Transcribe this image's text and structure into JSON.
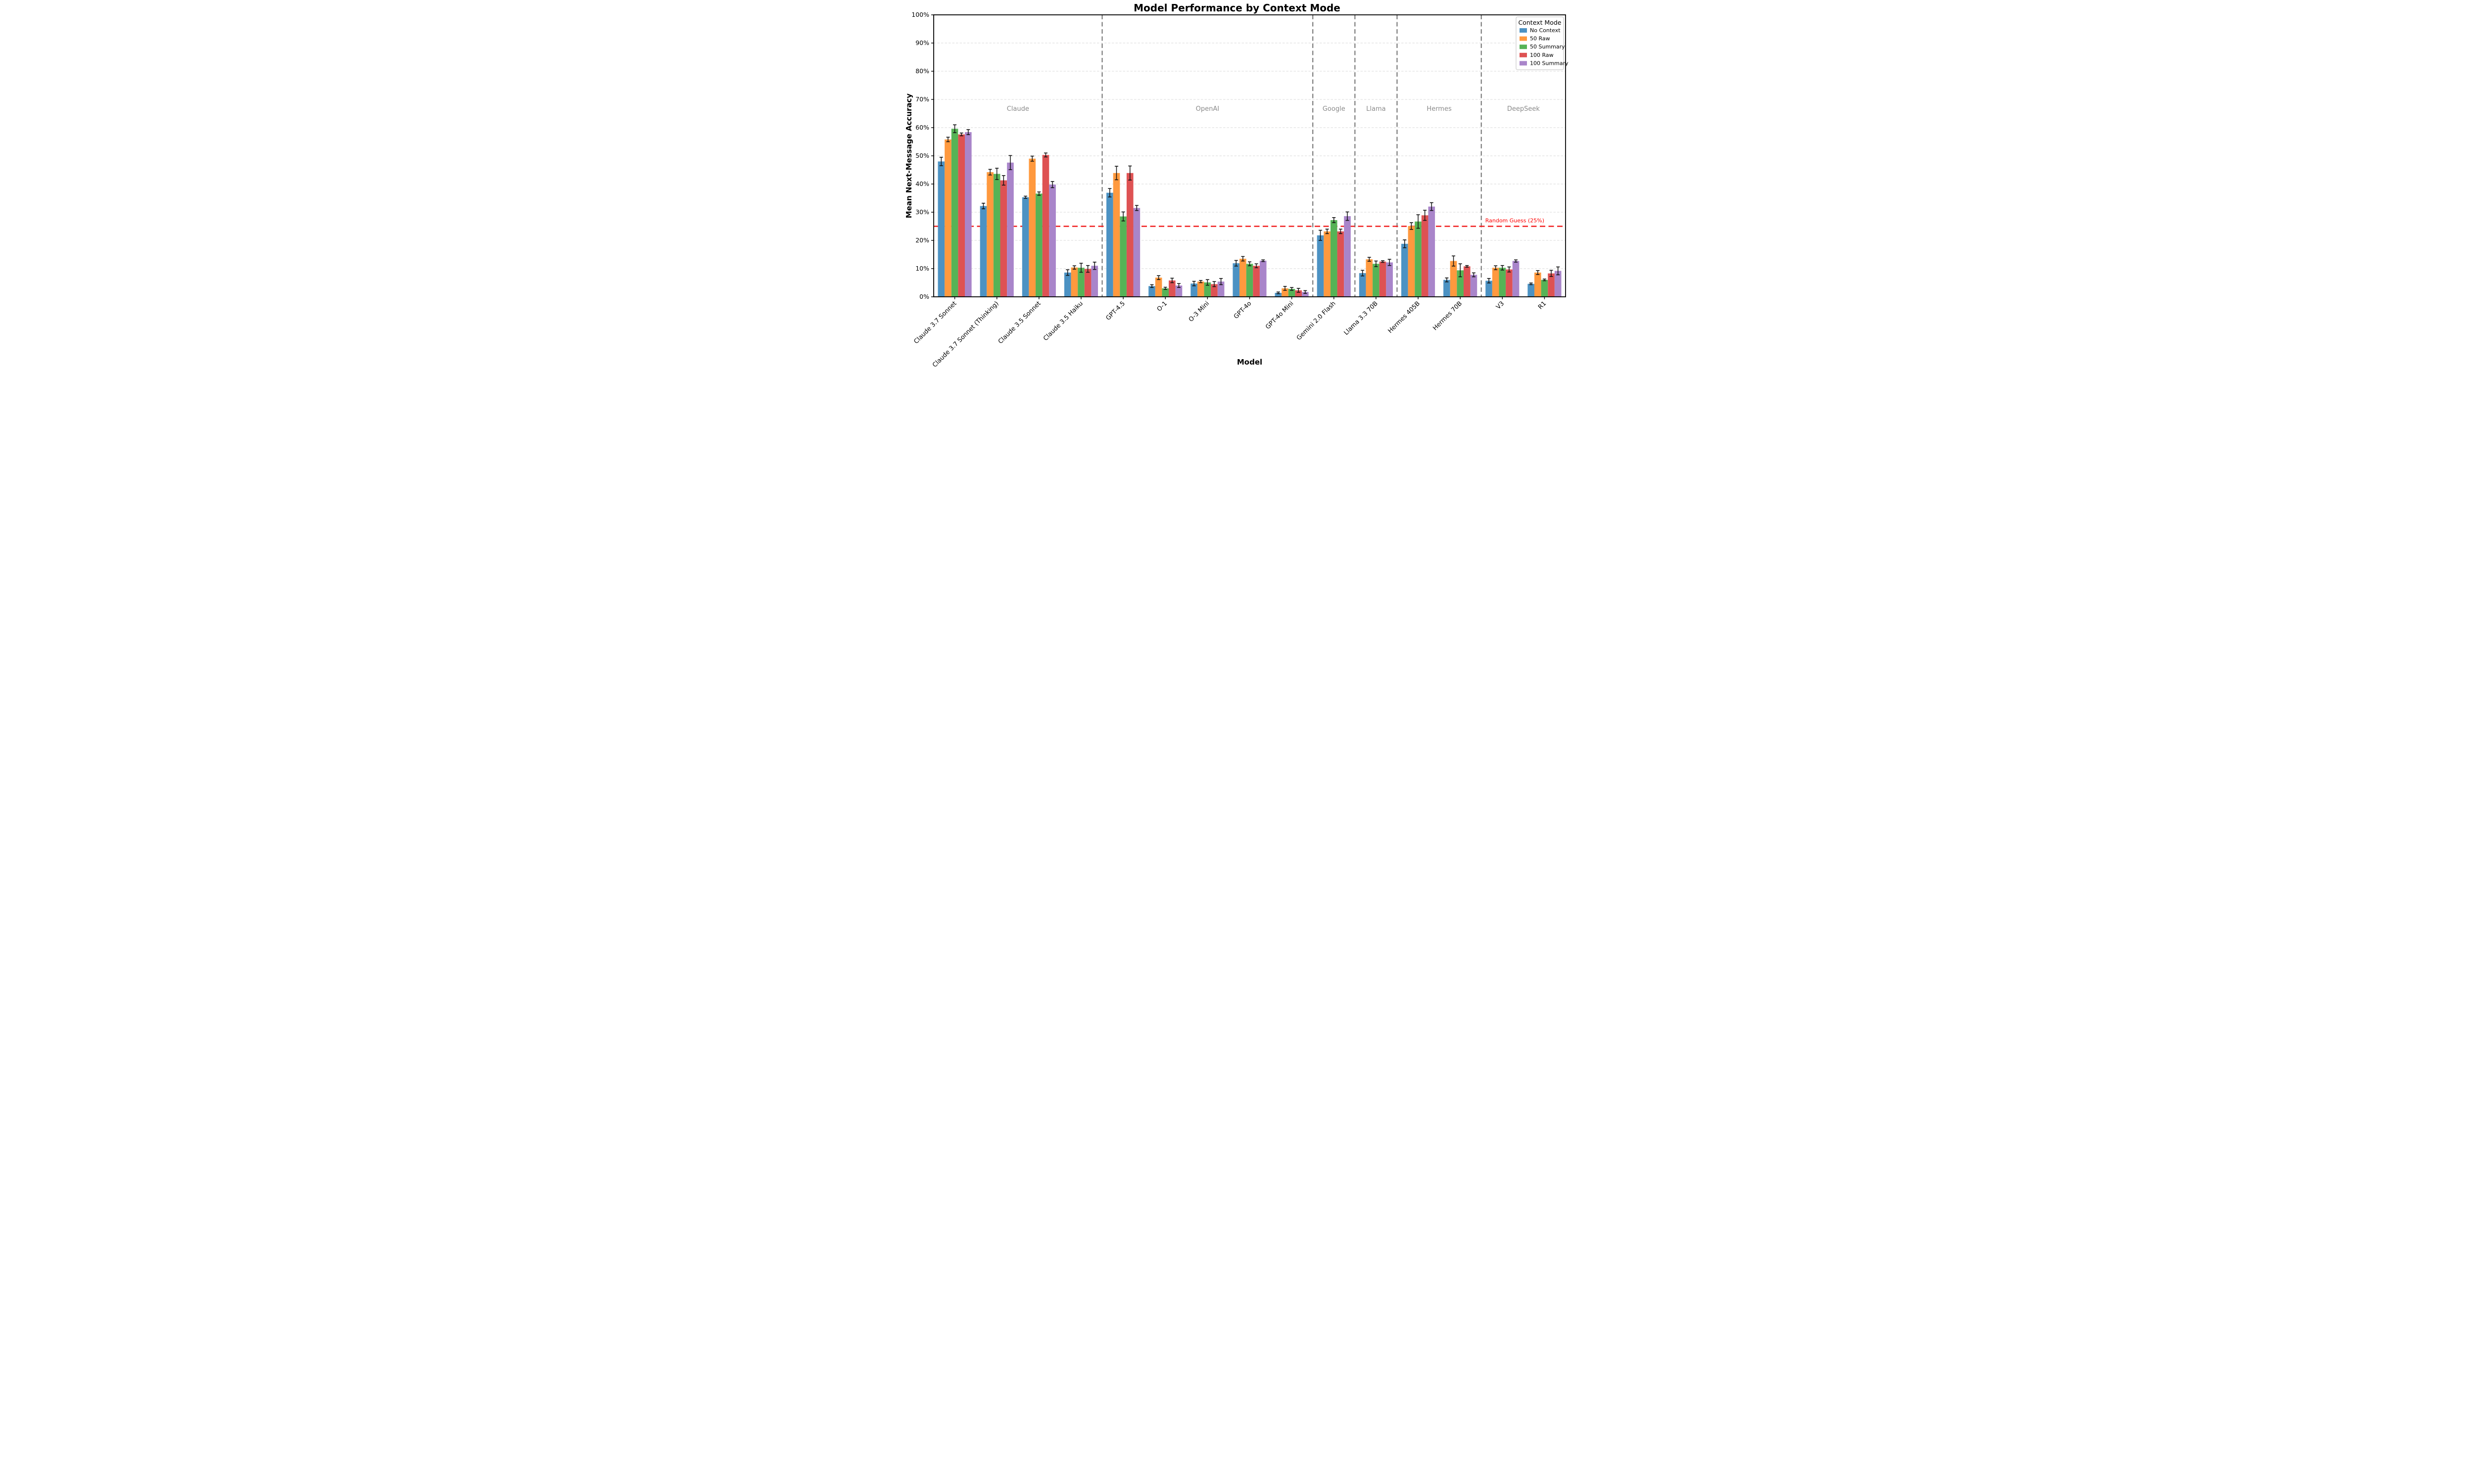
{
  "chart_data": {
    "type": "bar",
    "title": "Model Performance by Context Mode",
    "xlabel": "Model",
    "ylabel": "Mean Next-Message Accuracy",
    "ylim": [
      0,
      100
    ],
    "yticks": [
      0,
      10,
      20,
      30,
      40,
      50,
      60,
      70,
      80,
      90,
      100
    ],
    "ytick_suffix": "%",
    "grid": "horizontal-dashed",
    "categories": [
      "Claude 3.7 Sonnet",
      "Claude 3.7 Sonnet (Thinking)",
      "Claude 3.5 Sonnet",
      "Claude 3.5 Haiku",
      "GPT-4.5",
      "O-1",
      "O-3 Mini",
      "GPT-4o",
      "GPT-4o Mini",
      "Gemini 2.0 Flash",
      "Llama 3.3 70B",
      "Hermes 405B",
      "Hermes 70B",
      "V3",
      "R1"
    ],
    "provider_groups": [
      {
        "label": "Claude",
        "from": 0,
        "to": 3
      },
      {
        "label": "OpenAI",
        "from": 4,
        "to": 8
      },
      {
        "label": "Google",
        "from": 9,
        "to": 9
      },
      {
        "label": "Llama",
        "from": 10,
        "to": 10
      },
      {
        "label": "Hermes",
        "from": 11,
        "to": 12
      },
      {
        "label": "DeepSeek",
        "from": 13,
        "to": 14
      }
    ],
    "separators_after": [
      3,
      8,
      9,
      10,
      12
    ],
    "group_label_level": 66,
    "group_label_color": "#8a8a8a",
    "reference_line": {
      "value": 25,
      "label": "Random Guess (25%)",
      "color": "#f01e1e"
    },
    "legend": {
      "title": "Context Mode",
      "position": "top-right"
    },
    "series": [
      {
        "name": "No Context",
        "color": "#4C92C3",
        "values": [
          48.0,
          32.2,
          35.3,
          8.6,
          36.9,
          3.8,
          4.7,
          11.9,
          1.4,
          21.8,
          8.4,
          18.8,
          6.0,
          5.7,
          4.6
        ],
        "errors": [
          1.5,
          1.0,
          0.4,
          1.0,
          1.5,
          0.5,
          0.8,
          1.0,
          0.3,
          1.8,
          1.0,
          1.4,
          0.7,
          0.8,
          0.3
        ]
      },
      {
        "name": "50 Raw",
        "color": "#FF993E",
        "values": [
          55.8,
          44.2,
          49.0,
          10.4,
          43.9,
          6.8,
          5.4,
          13.5,
          3.0,
          23.2,
          13.3,
          25.1,
          12.7,
          10.3,
          8.6
        ],
        "errors": [
          0.8,
          1.0,
          0.9,
          0.6,
          2.4,
          0.7,
          0.4,
          0.8,
          0.7,
          0.8,
          0.7,
          1.2,
          1.8,
          0.7,
          0.7
        ]
      },
      {
        "name": "50 Summary",
        "color": "#56B356",
        "values": [
          59.6,
          43.6,
          36.6,
          10.3,
          28.5,
          3.0,
          5.1,
          11.7,
          2.8,
          27.2,
          11.7,
          26.7,
          9.4,
          10.3,
          6.0
        ],
        "errors": [
          1.4,
          2.0,
          0.6,
          1.6,
          1.6,
          0.4,
          1.0,
          0.7,
          0.5,
          0.9,
          1.0,
          2.4,
          2.3,
          0.8,
          0.3
        ]
      },
      {
        "name": "100 Raw",
        "color": "#DE5253",
        "values": [
          57.6,
          41.3,
          50.3,
          9.9,
          43.9,
          5.8,
          4.5,
          11.0,
          2.3,
          23.2,
          12.5,
          28.9,
          10.8,
          9.7,
          8.3
        ],
        "errors": [
          0.5,
          1.7,
          0.7,
          1.2,
          2.5,
          0.8,
          0.9,
          0.7,
          0.7,
          0.8,
          0.3,
          1.8,
          0.3,
          0.9,
          1.1
        ]
      },
      {
        "name": "100 Summary",
        "color": "#A985CA",
        "values": [
          58.4,
          47.6,
          39.8,
          11.0,
          31.5,
          4.0,
          5.4,
          12.8,
          1.7,
          28.6,
          12.2,
          32.0,
          7.8,
          12.7,
          9.2
        ],
        "errors": [
          0.9,
          2.5,
          1.1,
          1.3,
          0.9,
          0.7,
          1.1,
          0.3,
          0.5,
          1.5,
          1.1,
          1.4,
          0.7,
          0.4,
          1.4
        ]
      }
    ]
  }
}
